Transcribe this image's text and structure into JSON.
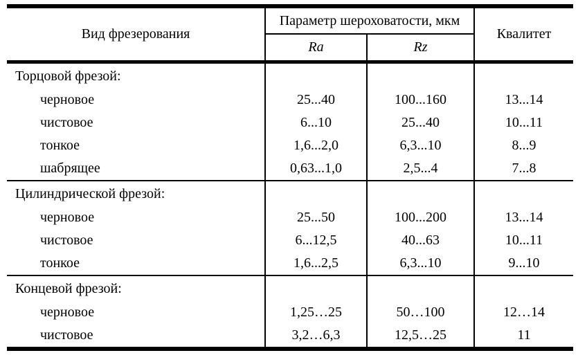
{
  "table": {
    "header": {
      "col_type": "Вид фрезерования",
      "col_roughness": "Параметр шероховатости, мкм",
      "col_ra": "Ra",
      "col_rz": "Rz",
      "col_grade": "Квалитет"
    },
    "groups": [
      {
        "label": "Торцовой фрезой:",
        "rows": [
          {
            "name": "черновое",
            "ra": "25...40",
            "rz": "100...160",
            "grade": "13...14"
          },
          {
            "name": "чистовое",
            "ra": "6...10",
            "rz": "25...40",
            "grade": "10...11"
          },
          {
            "name": "тонкое",
            "ra": "1,6...2,0",
            "rz": "6,3...10",
            "grade": "8...9"
          },
          {
            "name": "шабрящее",
            "ra": "0,63...1,0",
            "rz": "2,5...4",
            "grade": "7...8"
          }
        ]
      },
      {
        "label": "Цилиндрической фрезой:",
        "rows": [
          {
            "name": "черновое",
            "ra": "25...50",
            "rz": "100...200",
            "grade": "13...14"
          },
          {
            "name": "чистовое",
            "ra": "6...12,5",
            "rz": "40...63",
            "grade": "10...11"
          },
          {
            "name": "тонкое",
            "ra": "1,6...2,5",
            "rz": "6,3...10",
            "grade": "9...10"
          }
        ]
      },
      {
        "label": "Концевой фрезой:",
        "rows": [
          {
            "name": "черновое",
            "ra": "1,25…25",
            "rz": "50…100",
            "grade": "12…14"
          },
          {
            "name": "чистовое",
            "ra": "3,2…6,3",
            "rz": "12,5…25",
            "grade": "11"
          }
        ]
      }
    ]
  }
}
